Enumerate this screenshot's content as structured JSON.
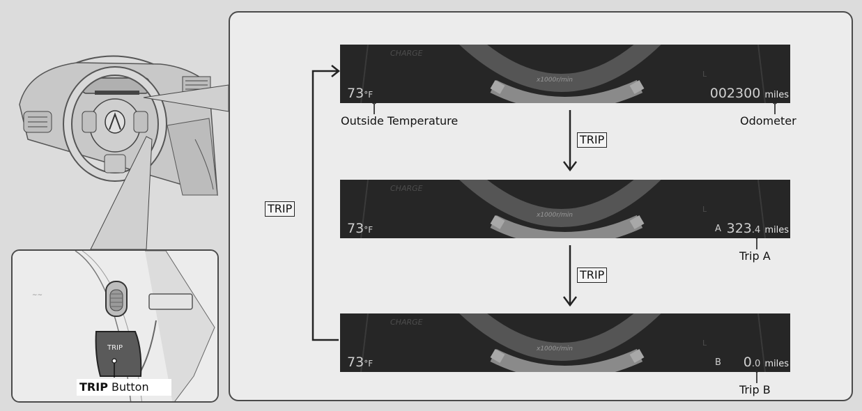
{
  "diagram": {
    "button_key_label": "TRIP",
    "inset": {
      "button_face_text": "TRIP",
      "callout_bold": "TRIP",
      "callout_rest": " Button"
    },
    "cluster_decor": {
      "charge": "CHARGE",
      "rpm": "x1000r/min",
      "gear": "L"
    },
    "displays": [
      {
        "temp_value": "73",
        "temp_unit": "°F",
        "reading_main": "002300",
        "reading_decimal": "",
        "reading_unit": "miles",
        "trip_letter": "",
        "callout": "Odometer"
      },
      {
        "temp_value": "73",
        "temp_unit": "°F",
        "reading_main": "323",
        "reading_decimal": ".4",
        "reading_unit": "miles",
        "trip_letter": "A",
        "callout": "Trip A"
      },
      {
        "temp_value": "73",
        "temp_unit": "°F",
        "reading_main": "0",
        "reading_decimal": ".0",
        "reading_unit": "miles",
        "trip_letter": "B",
        "callout": "Trip B"
      }
    ],
    "temperature_callout": "Outside Temperature",
    "colors": {
      "frame": "#4a4a4a",
      "display_bg": "#262626",
      "button_face": "#5a5a5a"
    }
  }
}
